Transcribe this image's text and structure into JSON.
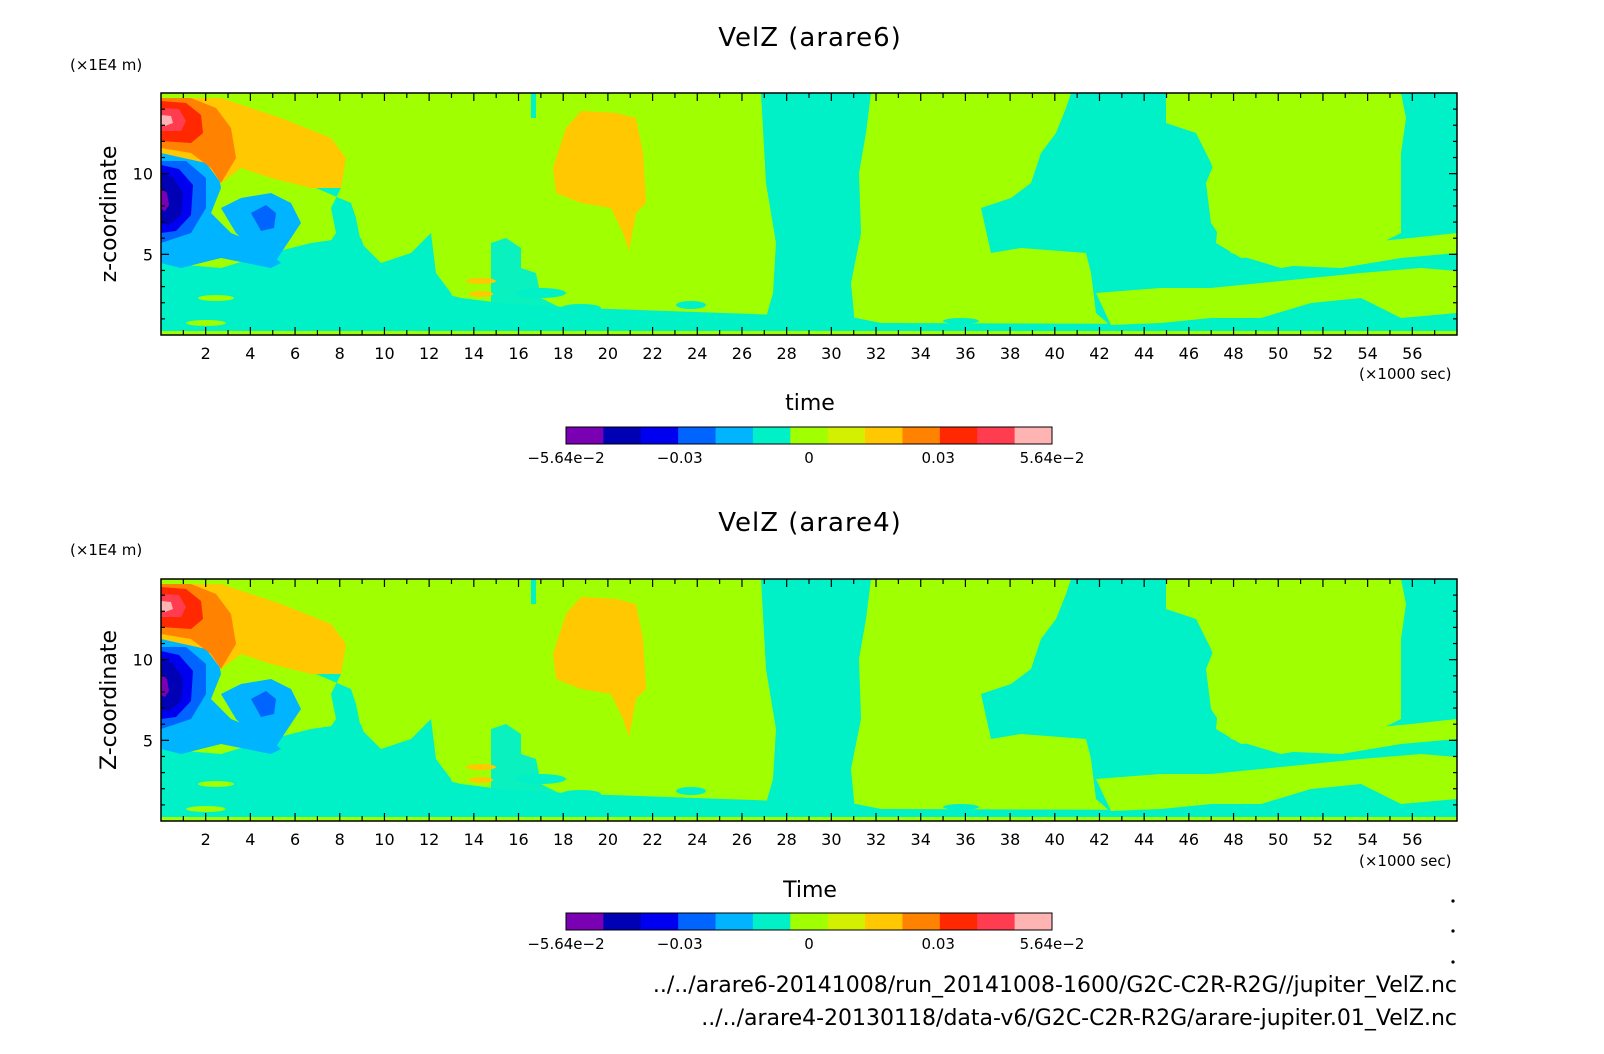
{
  "colors": {
    "levels": [
      "#7a00b4",
      "#0000b4",
      "#0000f0",
      "#0064ff",
      "#00b4ff",
      "#00f0c8",
      "#a0ff00",
      "#d2f000",
      "#ffc800",
      "#ff8200",
      "#ff2800",
      "#ff3c50",
      "#ffb4b4"
    ],
    "background_green": "#a0ff00",
    "cyan": "#00f0c8",
    "orange": "#ffc800"
  },
  "chart_data": [
    {
      "type": "heatmap",
      "title": "VelZ (arare6)",
      "xlabel": "time",
      "ylabel": "z-coordinate",
      "y_unit": "(×1E4 m)",
      "x_unit": "(×1000 sec)",
      "xlim": [
        0,
        58
      ],
      "ylim": [
        0,
        15
      ],
      "x_ticks": [
        "2",
        "4",
        "6",
        "8",
        "10",
        "12",
        "14",
        "16",
        "18",
        "20",
        "22",
        "24",
        "26",
        "28",
        "30",
        "32",
        "34",
        "36",
        "38",
        "40",
        "42",
        "44",
        "46",
        "48",
        "50",
        "52",
        "54",
        "56"
      ],
      "y_ticks": [
        "5",
        "10"
      ],
      "colorbar": {
        "min": -0.0564,
        "max": 0.0564,
        "labels": [
          "−5.64e−2",
          "−0.03",
          "0",
          "0.03",
          "5.64e−2"
        ]
      }
    },
    {
      "type": "heatmap",
      "title": "VelZ (arare4)",
      "xlabel": "Time",
      "ylabel": "Z-coordinate",
      "y_unit": "(×1E4 m)",
      "x_unit": "(×1000 sec)",
      "xlim": [
        0,
        58
      ],
      "ylim": [
        0,
        15
      ],
      "x_ticks": [
        "2",
        "4",
        "6",
        "8",
        "10",
        "12",
        "14",
        "16",
        "18",
        "20",
        "22",
        "24",
        "26",
        "28",
        "30",
        "32",
        "34",
        "36",
        "38",
        "40",
        "42",
        "44",
        "46",
        "48",
        "50",
        "52",
        "54",
        "56"
      ],
      "y_ticks": [
        "5",
        "10"
      ],
      "colorbar": {
        "min": -0.0564,
        "max": 0.0564,
        "labels": [
          "−5.64e−2",
          "−0.03",
          "0",
          "0.03",
          "5.64e−2"
        ]
      }
    }
  ],
  "footer": {
    "line1": "../../arare6-20141008/run_20141008-1600/G2C-C2R-R2G//jupiter_VelZ.nc",
    "line2": "../../arare4-20130118/data-v6/G2C-C2R-R2G/arare-jupiter.01_VelZ.nc"
  }
}
